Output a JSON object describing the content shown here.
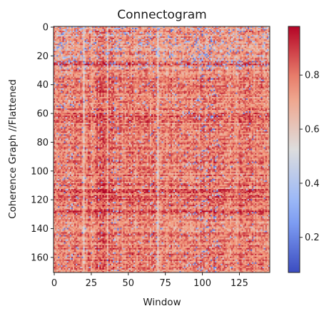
{
  "chart_data": {
    "type": "heatmap",
    "title": "Connectogram",
    "xlabel": "Window",
    "ylabel": "Coherence Graph //Flattened",
    "n_cols": 146,
    "n_rows": 171,
    "x_ticks": [
      0,
      25,
      50,
      75,
      100,
      125
    ],
    "y_ticks": [
      0,
      20,
      40,
      60,
      80,
      100,
      120,
      140,
      160
    ],
    "colormap": "coolwarm",
    "colormap_stops": [
      "#3b4cc0",
      "#8db0fe",
      "#dddddd",
      "#f49a7b",
      "#b40426"
    ],
    "value_range": [
      0.07,
      0.98
    ],
    "colorbar_ticks": [
      0.2,
      0.4,
      0.6,
      0.8
    ],
    "grid": false,
    "description_of_values": "mostly 0.65-0.9 (red/salmon); darker horizontal bands near rows 25, 60-66, 110-130; scattered blue low-coherence cells concentrated in rows 0-30 and columns 3-12, 40-45, 95-110; vertical stripes near columns 20, 36, 70"
  }
}
